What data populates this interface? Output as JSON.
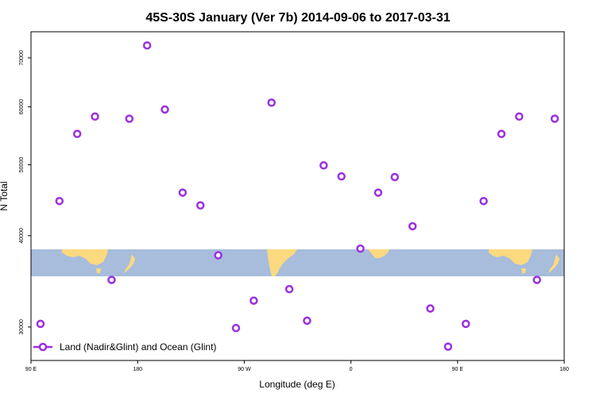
{
  "chart_data": {
    "type": "scatter",
    "title": "45S-30S January (Ver 7b)   2014-09-06 to 2017-03-31",
    "xlabel": "Longitude (deg E)",
    "ylabel": "N Total",
    "x_ticks": [
      {
        "value": 90,
        "label": "90 E"
      },
      {
        "value": 180,
        "label": "180"
      },
      {
        "value": 270,
        "label": "90 W"
      },
      {
        "value": 360,
        "label": "0"
      },
      {
        "value": 450,
        "label": "90 E"
      },
      {
        "value": 540,
        "label": "180"
      }
    ],
    "y_ticks": [
      {
        "value": 30000,
        "label": "30000"
      },
      {
        "value": 40000,
        "label": "40000"
      },
      {
        "value": 50000,
        "label": "50000"
      },
      {
        "value": 60000,
        "label": "60000"
      },
      {
        "value": 70000,
        "label": "70000"
      }
    ],
    "xlim": [
      90,
      540
    ],
    "ylim": [
      27000,
      76000
    ],
    "y_scale": "log",
    "grid": false,
    "legend_position": "bottom-left",
    "series": [
      {
        "name": "Land (Nadir&Glint) and Ocean (Glint)",
        "color": "#9b30e0",
        "marker": "open-circle",
        "x": [
          98,
          114,
          129,
          144,
          158,
          173,
          188,
          203,
          218,
          233,
          248,
          263,
          278,
          293,
          308,
          323,
          337,
          352,
          368,
          383,
          397,
          412,
          427,
          442,
          457,
          472,
          487,
          502,
          517,
          532
        ],
        "y": [
          30300,
          44600,
          55100,
          58200,
          34800,
          57800,
          72800,
          59500,
          45800,
          44000,
          37600,
          29900,
          32600,
          60800,
          33800,
          30600,
          49900,
          48200,
          38400,
          45800,
          48100,
          41200,
          31800,
          28200,
          30300,
          44600,
          55100,
          58200,
          34800,
          57800
        ]
      }
    ],
    "background_band": {
      "y_range": [
        35000,
        38000
      ],
      "ocean_color": "#a7bddb",
      "land_color": "#fdd97f"
    }
  }
}
